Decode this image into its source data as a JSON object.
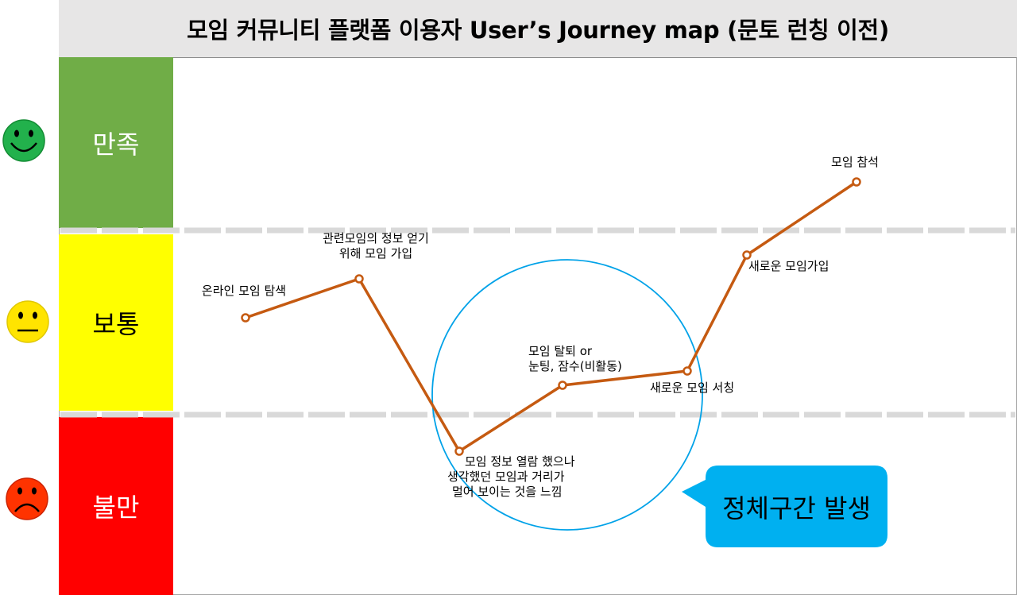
{
  "title": "모임 커뮤니티 플랫폼 이용자 User’s Journey map (문토 런칭 이전)",
  "bands": [
    {
      "label": "만족",
      "mood": "smile-face-icon",
      "color": "#70ad47"
    },
    {
      "label": "보통",
      "mood": "neutral-face-icon",
      "color": "#ffff00"
    },
    {
      "label": "불만",
      "mood": "sad-face-icon",
      "color": "#ff0000"
    }
  ],
  "callout": {
    "text": "정체구간 발생",
    "color": "#00b0f0"
  },
  "colors": {
    "line": "#c55a11",
    "circle": "#00a2e8"
  },
  "chart_data": {
    "type": "line",
    "steps": [
      {
        "label": "온라인 모임 탐색",
        "level": "보통"
      },
      {
        "label": "관련모임의 정보 얻기 위해 모임 가입",
        "level": "보통"
      },
      {
        "label": "모임 정보 열람 했으나 생각했던 모임과 거리가 멀어 보이는 것을 느낌",
        "level": "불만"
      },
      {
        "label": "모임 탈퇴 or 눈팅, 잠수(비활동)",
        "level": "보통"
      },
      {
        "label": "새로운 모임 서칭",
        "level": "보통"
      },
      {
        "label": "새로운 모임가입",
        "level": "보통"
      },
      {
        "label": "모임 참석",
        "level": "만족"
      }
    ],
    "label_lines": [
      [
        "온라인 모임 탐색"
      ],
      [
        "관련모임의 정보 얻기",
        "위해 모임 가입"
      ],
      [
        "모임 정보 열람 했으나",
        "생각했던 모임과 거리가",
        "멀어 보이는 것을 느낌"
      ],
      [
        "모임 탈퇴 or",
        "눈팅, 잠수(비활동)"
      ],
      [
        "새로운 모임 서칭"
      ],
      [
        "새로운 모임가입"
      ],
      [
        "모임 참석"
      ]
    ]
  }
}
